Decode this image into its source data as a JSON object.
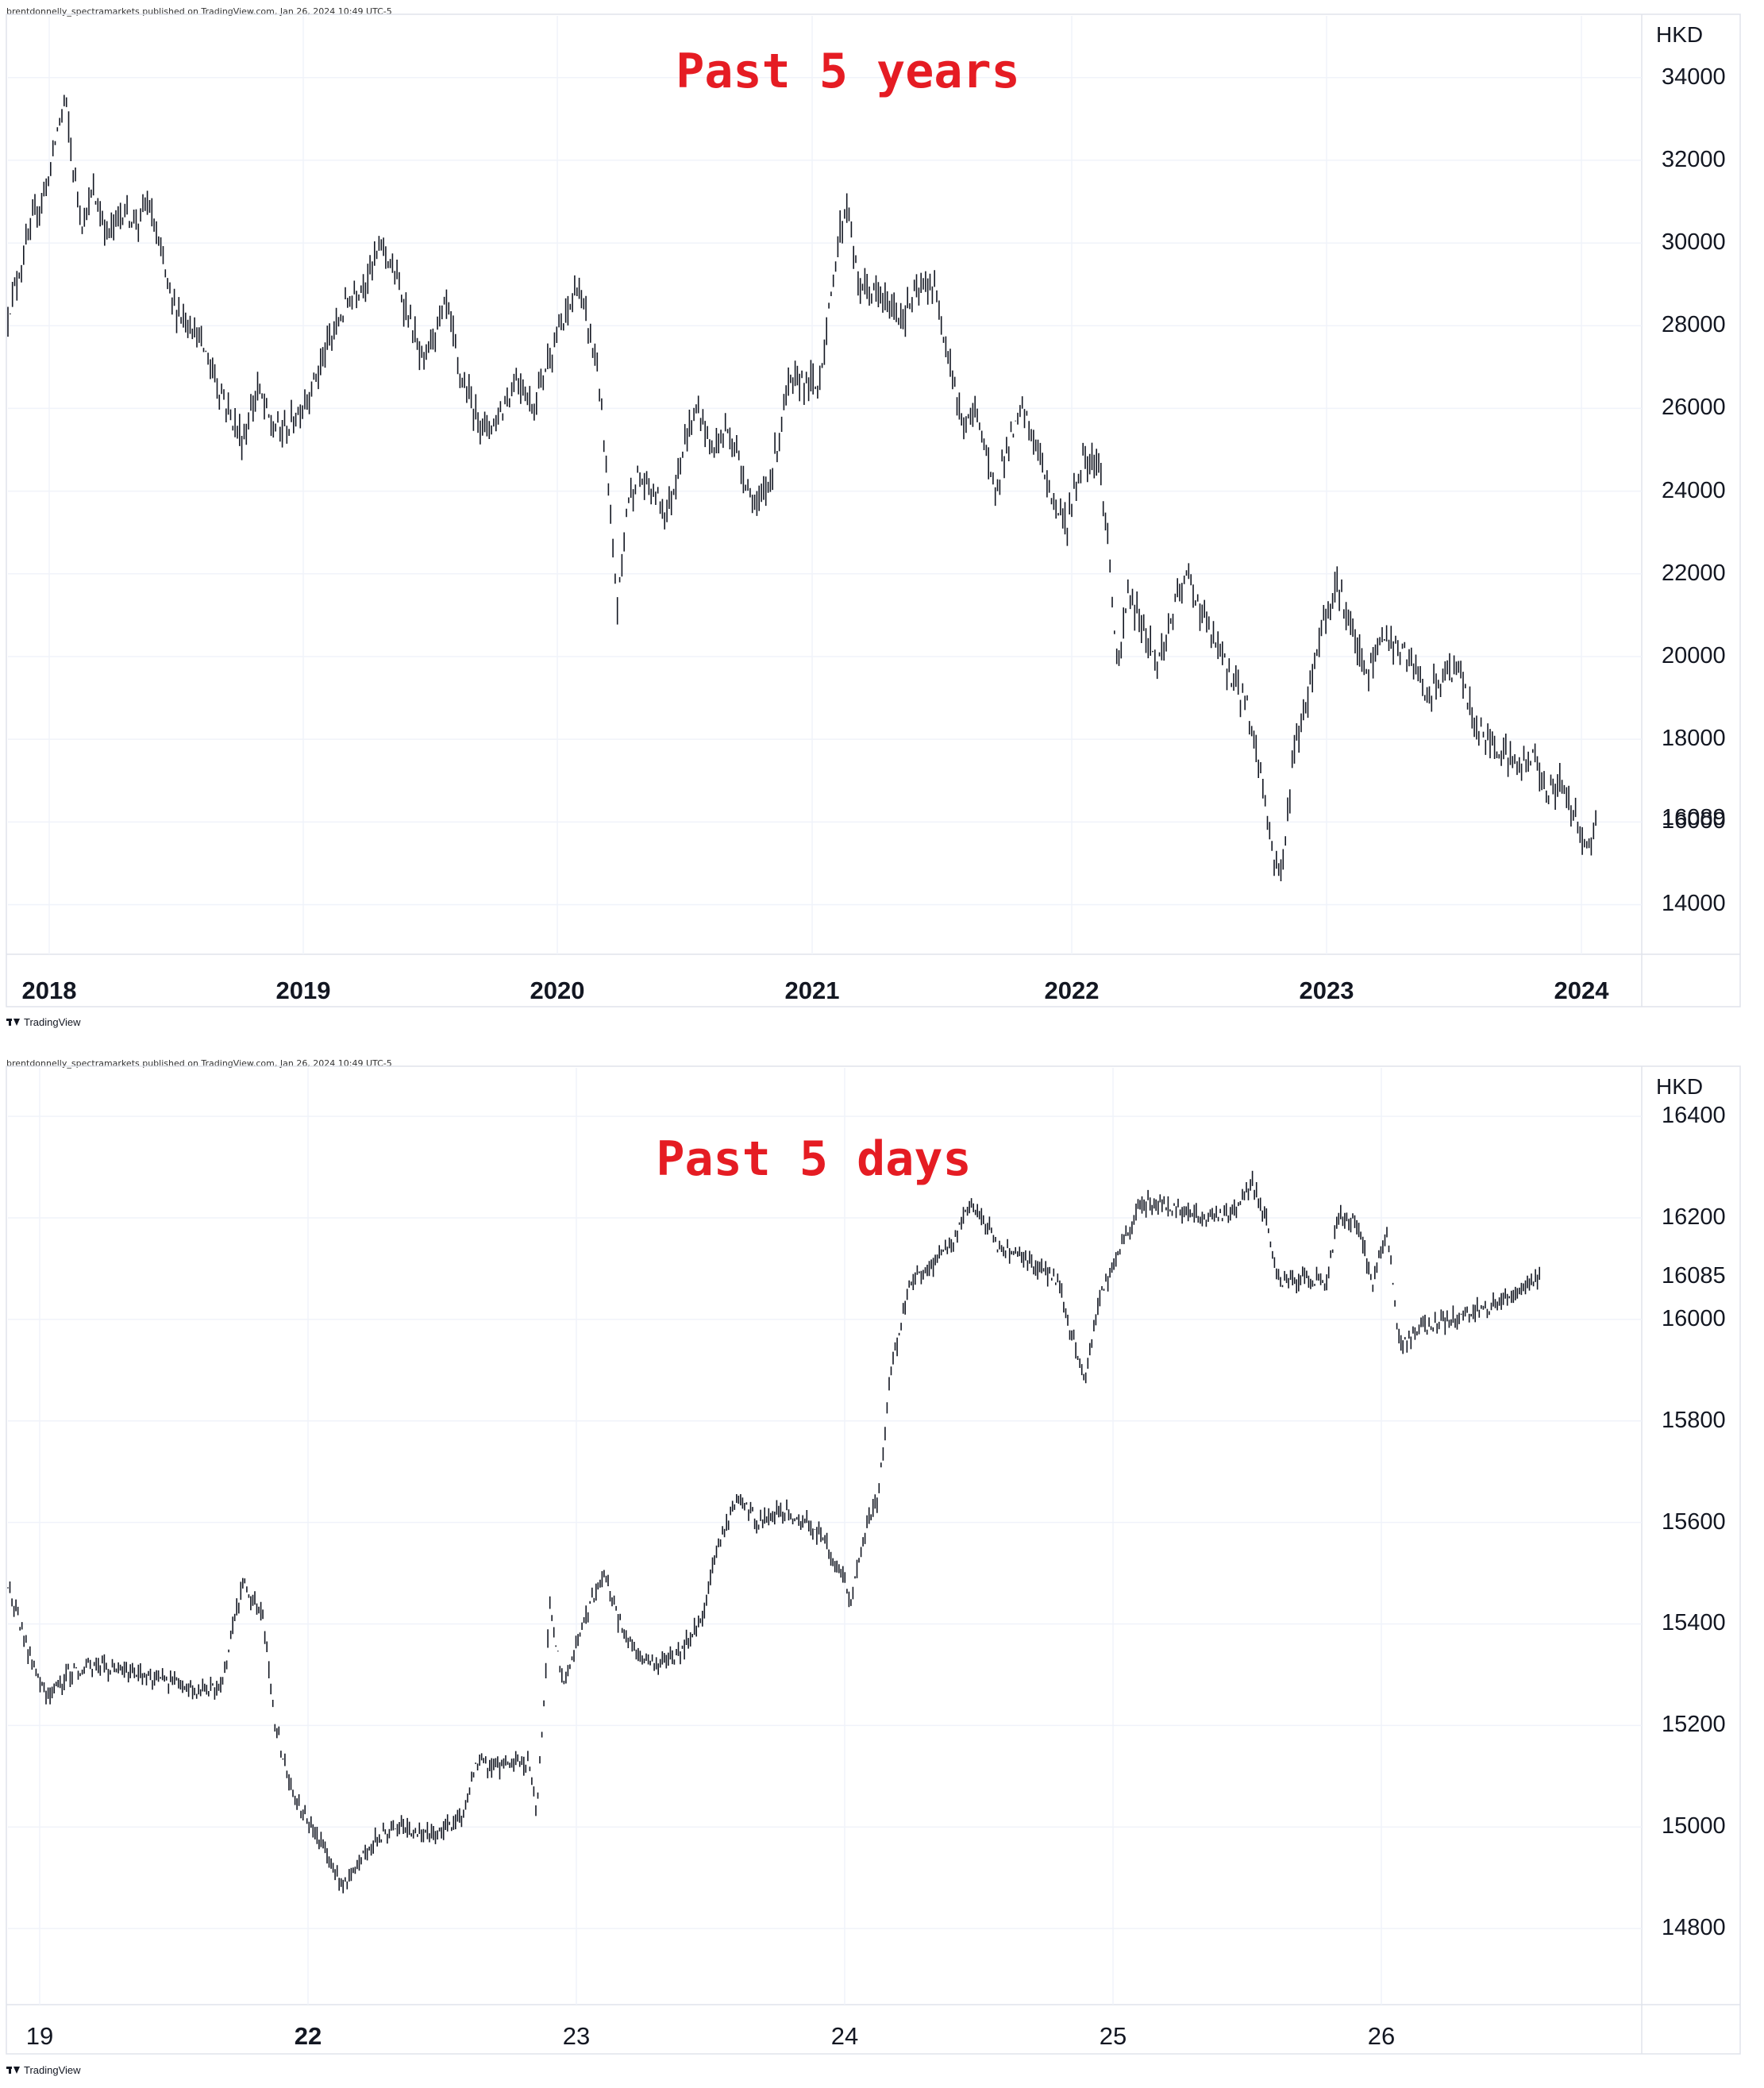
{
  "publisher_line": "brentdonnelly_spectramarkets published on TradingView.com, Jan 26, 2024 10:49 UTC-5",
  "brand": "TradingView",
  "icons": {
    "logo": "tradingview-logo-icon"
  },
  "colors": {
    "title": "#e51c23",
    "bars": "#131722",
    "grid": "#f0f3fa",
    "axis": "#e0e3eb"
  },
  "chart_data": [
    {
      "type": "ohlc",
      "title": "Past 5 years",
      "unit": "HKD",
      "ylim": [
        12800,
        35300
      ],
      "yticks": [
        14000,
        16000,
        18000,
        20000,
        22000,
        24000,
        26000,
        28000,
        30000,
        32000,
        34000
      ],
      "ytick_labels": [
        "14000",
        "16000",
        "18000",
        "20000",
        "22000",
        "24000",
        "26000",
        "28000",
        "30000",
        "32000",
        "34000"
      ],
      "last_price": 16089,
      "last_price_label": "16089",
      "x_labels": [
        "2018",
        "2019",
        "2020",
        "2021",
        "2022",
        "2023",
        "2024"
      ],
      "x_label_bold": [
        true,
        true,
        true,
        true,
        true,
        true,
        true
      ],
      "grid": true,
      "approx_path": [
        [
          0,
          28300
        ],
        [
          0.2,
          29200
        ],
        [
          0.5,
          30500
        ],
        [
          0.8,
          31500
        ],
        [
          1.0,
          32800
        ],
        [
          1.15,
          33500
        ],
        [
          1.3,
          31800
        ],
        [
          1.5,
          30500
        ],
        [
          1.7,
          31200
        ],
        [
          2.0,
          30200
        ],
        [
          2.3,
          30800
        ],
        [
          2.6,
          30500
        ],
        [
          2.8,
          31000
        ],
        [
          3.0,
          30000
        ],
        [
          3.3,
          28500
        ],
        [
          3.7,
          28000
        ],
        [
          4.0,
          27200
        ],
        [
          4.4,
          26000
        ],
        [
          4.7,
          25200
        ],
        [
          5.0,
          26500
        ],
        [
          5.3,
          25500
        ],
        [
          5.6,
          25500
        ],
        [
          6.0,
          26300
        ],
        [
          6.4,
          27500
        ],
        [
          6.8,
          28600
        ],
        [
          7.2,
          29200
        ],
        [
          7.5,
          30000
        ],
        [
          7.8,
          29000
        ],
        [
          8.0,
          28300
        ],
        [
          8.3,
          27000
        ],
        [
          8.5,
          27800
        ],
        [
          8.8,
          28500
        ],
        [
          9.0,
          27000
        ],
        [
          9.3,
          26000
        ],
        [
          9.6,
          25500
        ],
        [
          9.9,
          26000
        ],
        [
          10.2,
          26800
        ],
        [
          10.5,
          26000
        ],
        [
          10.8,
          27200
        ],
        [
          11.1,
          28000
        ],
        [
          11.4,
          29000
        ],
        [
          11.6,
          28000
        ],
        [
          11.8,
          27000
        ],
        [
          12.0,
          24000
        ],
        [
          12.2,
          21200
        ],
        [
          12.4,
          23800
        ],
        [
          12.6,
          24300
        ],
        [
          12.9,
          24000
        ],
        [
          13.2,
          23500
        ],
        [
          13.5,
          25000
        ],
        [
          13.8,
          26000
        ],
        [
          14.1,
          25000
        ],
        [
          14.4,
          25500
        ],
        [
          14.7,
          24500
        ],
        [
          15.0,
          23500
        ],
        [
          15.3,
          24500
        ],
        [
          15.6,
          26500
        ],
        [
          15.9,
          26700
        ],
        [
          16.2,
          26500
        ],
        [
          16.4,
          28000
        ],
        [
          16.6,
          30000
        ],
        [
          16.8,
          31000
        ],
        [
          17.0,
          29000
        ],
        [
          17.3,
          28800
        ],
        [
          17.6,
          28500
        ],
        [
          17.9,
          28200
        ],
        [
          18.2,
          28800
        ],
        [
          18.5,
          29000
        ],
        [
          18.8,
          27500
        ],
        [
          19.1,
          25500
        ],
        [
          19.4,
          26000
        ],
        [
          19.7,
          24000
        ],
        [
          20.0,
          25000
        ],
        [
          20.3,
          26000
        ],
        [
          20.6,
          25000
        ],
        [
          20.9,
          23800
        ],
        [
          21.2,
          23200
        ],
        [
          21.5,
          24800
        ],
        [
          21.8,
          24800
        ],
        [
          22.0,
          23000
        ],
        [
          22.2,
          19500
        ],
        [
          22.4,
          21500
        ],
        [
          22.7,
          20800
        ],
        [
          23.0,
          19800
        ],
        [
          23.3,
          21000
        ],
        [
          23.6,
          22000
        ],
        [
          23.9,
          21000
        ],
        [
          24.2,
          20200
        ],
        [
          24.5,
          19500
        ],
        [
          24.8,
          18800
        ],
        [
          25.1,
          17000
        ],
        [
          25.3,
          15200
        ],
        [
          25.5,
          14800
        ],
        [
          25.7,
          17500
        ],
        [
          26.0,
          19000
        ],
        [
          26.3,
          20800
        ],
        [
          26.6,
          21800
        ],
        [
          26.9,
          20500
        ],
        [
          27.2,
          19500
        ],
        [
          27.5,
          20500
        ],
        [
          27.8,
          20200
        ],
        [
          28.1,
          19800
        ],
        [
          28.4,
          19000
        ],
        [
          28.7,
          19500
        ],
        [
          29.0,
          19800
        ],
        [
          29.3,
          18500
        ],
        [
          29.6,
          18000
        ],
        [
          29.9,
          17800
        ],
        [
          30.2,
          17300
        ],
        [
          30.5,
          17600
        ],
        [
          30.8,
          16800
        ],
        [
          31.1,
          16900
        ],
        [
          31.4,
          16100
        ],
        [
          31.6,
          15300
        ],
        [
          31.8,
          16089
        ]
      ]
    },
    {
      "type": "ohlc",
      "title": "Past 5 days",
      "unit": "HKD",
      "ylim": [
        14650,
        16480
      ],
      "yticks": [
        14800,
        15000,
        15200,
        15400,
        15600,
        15800,
        16000,
        16200,
        16400
      ],
      "ytick_labels": [
        "14800",
        "15000",
        "15200",
        "15400",
        "15600",
        "15800",
        "16000",
        "16200",
        "16400"
      ],
      "last_price": 16085,
      "last_price_label": "16085",
      "x_labels": [
        "19",
        "22",
        "23",
        "24",
        "25",
        "26"
      ],
      "x_label_bold": [
        false,
        true,
        false,
        false,
        false,
        false
      ],
      "grid": true,
      "approx_path": [
        [
          0.0,
          15480
        ],
        [
          0.02,
          15390
        ],
        [
          0.04,
          15300
        ],
        [
          0.06,
          15260
        ],
        [
          0.09,
          15300
        ],
        [
          0.12,
          15320
        ],
        [
          0.16,
          15310
        ],
        [
          0.2,
          15300
        ],
        [
          0.24,
          15290
        ],
        [
          0.28,
          15270
        ],
        [
          0.32,
          15280
        ],
        [
          0.35,
          15480
        ],
        [
          0.38,
          15420
        ],
        [
          0.4,
          15200
        ],
        [
          0.43,
          15050
        ],
        [
          0.46,
          14990
        ],
        [
          0.48,
          14940
        ],
        [
          0.5,
          14880
        ],
        [
          0.52,
          14920
        ],
        [
          0.55,
          14980
        ],
        [
          0.58,
          15000
        ],
        [
          0.62,
          14980
        ],
        [
          0.66,
          15000
        ],
        [
          0.68,
          15020
        ],
        [
          0.7,
          15130
        ],
        [
          0.73,
          15120
        ],
        [
          0.76,
          15130
        ],
        [
          0.78,
          15120
        ],
        [
          0.79,
          15020
        ],
        [
          0.81,
          15430
        ],
        [
          0.83,
          15280
        ],
        [
          0.86,
          15400
        ],
        [
          0.89,
          15500
        ],
        [
          0.92,
          15380
        ],
        [
          0.95,
          15330
        ],
        [
          0.98,
          15320
        ],
        [
          1.01,
          15350
        ],
        [
          1.04,
          15420
        ],
        [
          1.06,
          15550
        ],
        [
          1.09,
          15650
        ],
        [
          1.12,
          15600
        ],
        [
          1.15,
          15620
        ],
        [
          1.18,
          15610
        ],
        [
          1.21,
          15580
        ],
        [
          1.24,
          15520
        ],
        [
          1.26,
          15440
        ],
        [
          1.28,
          15580
        ],
        [
          1.3,
          15650
        ],
        [
          1.32,
          15900
        ],
        [
          1.35,
          16080
        ],
        [
          1.38,
          16100
        ],
        [
          1.41,
          16150
        ],
        [
          1.44,
          16230
        ],
        [
          1.46,
          16200
        ],
        [
          1.48,
          16140
        ],
        [
          1.51,
          16130
        ],
        [
          1.54,
          16100
        ],
        [
          1.57,
          16080
        ],
        [
          1.59,
          15970
        ],
        [
          1.61,
          15880
        ],
        [
          1.63,
          16040
        ],
        [
          1.66,
          16130
        ],
        [
          1.69,
          16220
        ],
        [
          1.72,
          16230
        ],
        [
          1.76,
          16210
        ],
        [
          1.8,
          16200
        ],
        [
          1.84,
          16220
        ],
        [
          1.86,
          16270
        ],
        [
          1.88,
          16200
        ],
        [
          1.9,
          16070
        ],
        [
          1.94,
          16080
        ],
        [
          1.97,
          16070
        ],
        [
          1.99,
          16210
        ],
        [
          2.02,
          16180
        ],
        [
          2.04,
          16070
        ],
        [
          2.06,
          16180
        ],
        [
          2.08,
          15950
        ],
        [
          2.11,
          15980
        ],
        [
          2.14,
          15990
        ],
        [
          2.17,
          16010
        ],
        [
          2.2,
          16020
        ],
        [
          2.23,
          16030
        ],
        [
          2.26,
          16060
        ],
        [
          2.29,
          16085
        ]
      ]
    }
  ]
}
